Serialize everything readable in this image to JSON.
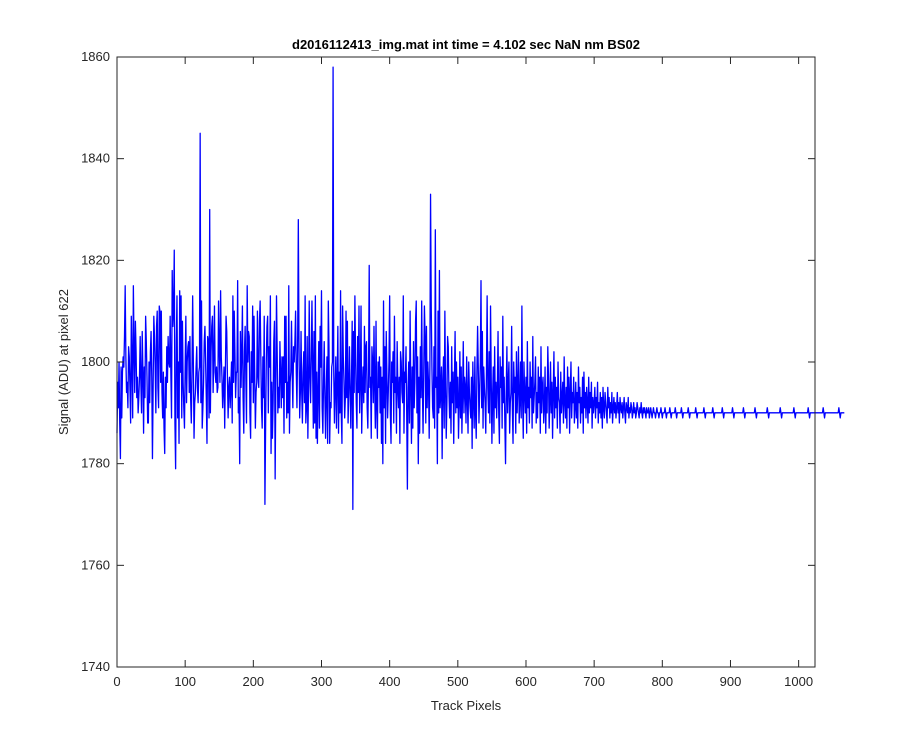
{
  "colors": {
    "series": "#0000ff",
    "axes": "#262626",
    "background": "#ffffff"
  },
  "chart_data": {
    "type": "line",
    "title": "d2016112413_img.mat int time = 4.102 sec  NaN nm BS02",
    "xlabel": "Track Pixels",
    "ylabel": "Signal (ADU) at pixel 622",
    "xlim": [
      0,
      1024
    ],
    "ylim": [
      1740,
      1860
    ],
    "x_ticks": [
      0,
      100,
      200,
      300,
      400,
      500,
      600,
      700,
      800,
      900,
      1000
    ],
    "y_ticks": [
      1740,
      1760,
      1780,
      1800,
      1820,
      1840,
      1860
    ],
    "grid": false,
    "legend": "none",
    "series": [
      {
        "x_start": 0,
        "x_step": 1,
        "values": [
          1786,
          1796,
          1791,
          1800,
          1788,
          1781,
          1799,
          1789,
          1798,
          1801,
          1799,
          1805,
          1815,
          1801,
          1794,
          1796,
          1791,
          1803,
          1801,
          1795,
          1788,
          1809,
          1800,
          1789,
          1815,
          1803,
          1794,
          1808,
          1802,
          1793,
          1797,
          1790,
          1793,
          1797,
          1805,
          1796,
          1790,
          1806,
          1798,
          1786,
          1799,
          1793,
          1809,
          1804,
          1797,
          1788,
          1788,
          1800,
          1792,
          1802,
          1806,
          1797,
          1781,
          1795,
          1809,
          1805,
          1799,
          1790,
          1807,
          1810,
          1795,
          1791,
          1811,
          1810,
          1796,
          1810,
          1794,
          1789,
          1798,
          1787,
          1782,
          1797,
          1791,
          1803,
          1796,
          1805,
          1800,
          1799,
          1809,
          1798,
          1789,
          1818,
          1807,
          1810,
          1822,
          1788,
          1779,
          1804,
          1813,
          1789,
          1800,
          1784,
          1814,
          1798,
          1813,
          1789,
          1808,
          1796,
          1791,
          1787,
          1799,
          1809,
          1792,
          1800,
          1803,
          1804,
          1794,
          1805,
          1793,
          1788,
          1798,
          1813,
          1800,
          1785,
          1792,
          1794,
          1799,
          1803,
          1795,
          1792,
          1798,
          1799,
          1845,
          1792,
          1812,
          1787,
          1791,
          1796,
          1804,
          1807,
          1800,
          1793,
          1784,
          1805,
          1804,
          1789,
          1830,
          1790,
          1802,
          1807,
          1809,
          1794,
          1801,
          1811,
          1798,
          1796,
          1799,
          1794,
          1795,
          1812,
          1803,
          1796,
          1814,
          1801,
          1797,
          1791,
          1795,
          1799,
          1787,
          1798,
          1809,
          1806,
          1797,
          1789,
          1795,
          1797,
          1791,
          1795,
          1800,
          1788,
          1813,
          1796,
          1810,
          1802,
          1793,
          1798,
          1798,
          1816,
          1790,
          1793,
          1780,
          1806,
          1795,
          1802,
          1811,
          1793,
          1786,
          1802,
          1807,
          1797,
          1788,
          1815,
          1800,
          1806,
          1805,
          1790,
          1785,
          1802,
          1796,
          1811,
          1792,
          1809,
          1798,
          1787,
          1794,
          1796,
          1810,
          1797,
          1795,
          1808,
          1812,
          1801,
          1791,
          1787,
          1801,
          1793,
          1809,
          1772,
          1787,
          1800,
          1807,
          1809,
          1790,
          1803,
          1799,
          1813,
          1782,
          1796,
          1785,
          1792,
          1804,
          1808,
          1777,
          1795,
          1813,
          1802,
          1790,
          1795,
          1791,
          1804,
          1798,
          1791,
          1801,
          1793,
          1801,
          1786,
          1809,
          1796,
          1809,
          1789,
          1796,
          1790,
          1815,
          1786,
          1796,
          1798,
          1808,
          1798,
          1791,
          1803,
          1800,
          1804,
          1810,
          1798,
          1791,
          1803,
          1828,
          1804,
          1789,
          1794,
          1806,
          1794,
          1788,
          1798,
          1802,
          1792,
          1813,
          1788,
          1791,
          1805,
          1785,
          1795,
          1812,
          1797,
          1792,
          1801,
          1812,
          1799,
          1787,
          1806,
          1788,
          1813,
          1785,
          1798,
          1784,
          1794,
          1804,
          1787,
          1807,
          1799,
          1814,
          1791,
          1786,
          1796,
          1804,
          1793,
          1785,
          1794,
          1801,
          1784,
          1812,
          1803,
          1784,
          1792,
          1791,
          1799,
          1800,
          1858,
          1798,
          1788,
          1795,
          1801,
          1787,
          1796,
          1807,
          1786,
          1798,
          1790,
          1814,
          1790,
          1784,
          1811,
          1801,
          1796,
          1789,
          1793,
          1810,
          1793,
          1808,
          1788,
          1794,
          1803,
          1795,
          1787,
          1796,
          1808,
          1771,
          1806,
          1794,
          1813,
          1801,
          1792,
          1787,
          1805,
          1794,
          1811,
          1790,
          1796,
          1811,
          1786,
          1795,
          1799,
          1792,
          1807,
          1794,
          1803,
          1804,
          1791,
          1787,
          1798,
          1819,
          1795,
          1797,
          1785,
          1803,
          1800,
          1792,
          1807,
          1795,
          1787,
          1808,
          1791,
          1785,
          1800,
          1795,
          1801,
          1790,
          1799,
          1784,
          1797,
          1780,
          1812,
          1791,
          1803,
          1784,
          1806,
          1797,
          1789,
          1794,
          1800,
          1813,
          1790,
          1784,
          1800,
          1796,
          1802,
          1788,
          1809,
          1794,
          1797,
          1786,
          1804,
          1795,
          1791,
          1797,
          1784,
          1802,
          1800,
          1794,
          1792,
          1813,
          1786,
          1798,
          1796,
          1803,
          1790,
          1775,
          1795,
          1800,
          1788,
          1810,
          1795,
          1784,
          1799,
          1787,
          1804,
          1791,
          1796,
          1808,
          1812,
          1790,
          1801,
          1780,
          1797,
          1786,
          1803,
          1793,
          1812,
          1795,
          1786,
          1798,
          1811,
          1805,
          1788,
          1807,
          1791,
          1800,
          1796,
          1785,
          1799,
          1833,
          1811,
          1799,
          1791,
          1789,
          1803,
          1787,
          1826,
          1795,
          1797,
          1780,
          1810,
          1790,
          1818,
          1791,
          1794,
          1799,
          1781,
          1796,
          1801,
          1787,
          1810,
          1795,
          1785,
          1792,
          1805,
          1803,
          1794,
          1789,
          1796,
          1786,
          1803,
          1792,
          1798,
          1784,
          1796,
          1806,
          1790,
          1800,
          1791,
          1797,
          1785,
          1792,
          1802,
          1789,
          1799,
          1786,
          1794,
          1804,
          1790,
          1797,
          1795,
          1788,
          1801,
          1793,
          1786,
          1800,
          1794,
          1791,
          1789,
          1797,
          1783,
          1800,
          1793,
          1787,
          1801,
          1790,
          1785,
          1798,
          1807,
          1799,
          1788,
          1794,
          1800,
          1816,
          1791,
          1806,
          1787,
          1799,
          1795,
          1792,
          1786,
          1798,
          1813,
          1795,
          1790,
          1802,
          1788,
          1811,
          1797,
          1784,
          1793,
          1799,
          1786,
          1803,
          1791,
          1796,
          1789,
          1795,
          1806,
          1790,
          1784,
          1801,
          1795,
          1799,
          1787,
          1809,
          1792,
          1797,
          1788,
          1780,
          1794,
          1803,
          1790,
          1796,
          1800,
          1786,
          1792,
          1794,
          1807,
          1791,
          1784,
          1800,
          1794,
          1797,
          1786,
          1802,
          1790,
          1795,
          1803,
          1788,
          1792,
          1800,
          1789,
          1811,
          1793,
          1785,
          1800,
          1794,
          1790,
          1797,
          1786,
          1804,
          1791,
          1795,
          1788,
          1800,
          1793,
          1797,
          1787,
          1805,
          1790,
          1793,
          1796,
          1801,
          1788,
          1794,
          1789,
          1799,
          1792,
          1797,
          1786,
          1803,
          1790,
          1795,
          1797,
          1788,
          1791,
          1799,
          1786,
          1795,
          1790,
          1803,
          1797,
          1787,
          1792,
          1800,
          1790,
          1796,
          1785,
          1794,
          1802,
          1789,
          1797,
          1791,
          1795,
          1787,
          1800,
          1793,
          1792,
          1786,
          1798,
          1790,
          1793,
          1796,
          1788,
          1801,
          1792,
          1789,
          1795,
          1787,
          1799,
          1791,
          1797,
          1786,
          1794,
          1800,
          1789,
          1794,
          1792,
          1797,
          1788,
          1791,
          1796,
          1789,
          1794,
          1787,
          1799,
          1792,
          1795,
          1788,
          1793,
          1790,
          1797,
          1786,
          1798,
          1791,
          1794,
          1789,
          1795,
          1792,
          1788,
          1797,
          1790,
          1794,
          1791,
          1796,
          1787,
          1793,
          1790,
          1792,
          1795,
          1789,
          1793,
          1791,
          1796,
          1788,
          1792,
          1790,
          1794,
          1789,
          1793,
          1787,
          1795,
          1791,
          1789,
          1794,
          1792,
          1790,
          1788,
          1795,
          1791,
          1793,
          1789,
          1792,
          1790,
          1794,
          1788,
          1791,
          1793,
          1790,
          1792,
          1789,
          1791,
          1794,
          1790,
          1792,
          1788,
          1793,
          1791,
          1790,
          1792,
          1789,
          1791,
          1793,
          1790,
          1788,
          1792,
          1791,
          1790,
          1793,
          1789,
          1791,
          1790,
          1792,
          1791,
          1789,
          1790,
          1792,
          1790,
          1791,
          1789,
          1790,
          1792,
          1791,
          1790,
          1789,
          1791,
          1790,
          1792,
          1790,
          1789,
          1791,
          1790,
          1791,
          1790,
          1789,
          1791,
          1790,
          1790,
          1791,
          1789,
          1790,
          1791,
          1790,
          1789,
          1790,
          1791,
          1790,
          1790,
          1789,
          1790,
          1791,
          1790,
          1790,
          1789,
          1790,
          1790,
          1791,
          1790,
          1789,
          1790,
          1790,
          1790,
          1791,
          1790,
          1789,
          1790,
          1790,
          1790,
          1790,
          1791,
          1790,
          1789,
          1790,
          1790,
          1790,
          1790,
          1790,
          1791,
          1790,
          1789,
          1790,
          1790,
          1790,
          1790,
          1790,
          1790,
          1791,
          1790,
          1789,
          1790,
          1790,
          1790,
          1790,
          1790,
          1790,
          1790,
          1791,
          1790,
          1789,
          1790,
          1790,
          1790,
          1790,
          1790,
          1790,
          1790,
          1790,
          1791,
          1790,
          1789,
          1790,
          1790,
          1790,
          1790,
          1790,
          1790,
          1790,
          1790,
          1790,
          1791,
          1790,
          1789,
          1790,
          1790,
          1790,
          1790,
          1790,
          1790,
          1790,
          1790,
          1790,
          1790,
          1791,
          1790,
          1789,
          1790,
          1790,
          1790,
          1790,
          1790,
          1790,
          1790,
          1790,
          1790,
          1790,
          1790,
          1791,
          1790,
          1789,
          1790,
          1790,
          1790,
          1790,
          1790,
          1790,
          1790,
          1790,
          1790,
          1790,
          1790,
          1790,
          1791,
          1790,
          1789,
          1790,
          1790,
          1790,
          1790,
          1790,
          1790,
          1790,
          1790,
          1790,
          1790,
          1790,
          1790,
          1790,
          1791,
          1790,
          1789,
          1790,
          1790,
          1790,
          1790,
          1790,
          1790,
          1790,
          1790,
          1790,
          1790,
          1790,
          1790,
          1790,
          1790,
          1791,
          1790,
          1789,
          1790,
          1790,
          1790,
          1790,
          1790,
          1790,
          1790,
          1790,
          1790,
          1790,
          1790,
          1790,
          1790,
          1790,
          1790,
          1791,
          1790,
          1789,
          1790,
          1790,
          1790,
          1790,
          1790,
          1790,
          1790,
          1790,
          1790,
          1790,
          1790,
          1790,
          1790,
          1790,
          1790,
          1790,
          1791,
          1790,
          1789,
          1790,
          1790,
          1790,
          1790,
          1790,
          1790,
          1790,
          1790,
          1790,
          1790,
          1790,
          1790,
          1790,
          1790,
          1790,
          1790,
          1790,
          1791,
          1790,
          1789,
          1790,
          1790,
          1790,
          1790,
          1790,
          1790,
          1790,
          1790,
          1790,
          1790,
          1790,
          1790,
          1790,
          1790,
          1790,
          1790,
          1790,
          1790,
          1791,
          1790,
          1789,
          1790,
          1790,
          1790,
          1790,
          1790,
          1790,
          1790,
          1790,
          1790,
          1790,
          1790,
          1790,
          1790,
          1790,
          1790,
          1790,
          1790,
          1790,
          1790,
          1791,
          1790,
          1789,
          1790,
          1790,
          1790,
          1790,
          1790,
          1790,
          1790,
          1790,
          1790,
          1790,
          1790,
          1790,
          1790,
          1790,
          1790,
          1790,
          1790,
          1790,
          1790,
          1790,
          1791,
          1790,
          1789,
          1790,
          1790,
          1790,
          1790,
          1790,
          1790
        ]
      }
    ]
  }
}
